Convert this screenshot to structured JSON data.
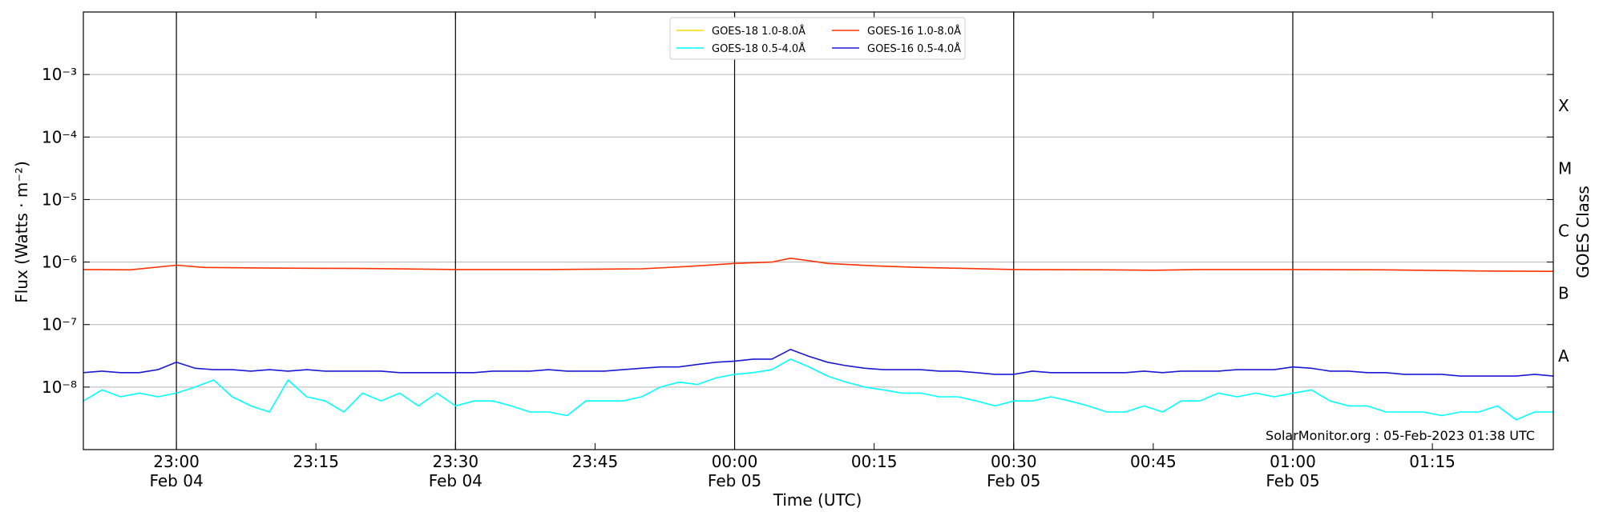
{
  "chart_data": {
    "type": "line",
    "title": "",
    "xlabel": "Time (UTC)",
    "ylabel": "Flux (Watts · m⁻²)",
    "y2label": "GOES Class",
    "yscale": "log",
    "ylim": [
      1e-09,
      0.01
    ],
    "xlim": [
      "22:50",
      "01:28"
    ],
    "grid": "horizontal at decades",
    "legend_position": "top-center",
    "y_ticks": [
      {
        "value": 1e-08,
        "label": "10⁻⁸"
      },
      {
        "value": 1e-07,
        "label": "10⁻⁷"
      },
      {
        "value": 1e-06,
        "label": "10⁻⁶"
      },
      {
        "value": 1e-05,
        "label": "10⁻⁵"
      },
      {
        "value": 0.0001,
        "label": "10⁻⁴"
      },
      {
        "value": 0.001,
        "label": "10⁻³"
      }
    ],
    "x_ticks": [
      {
        "time": "23:00",
        "label": "23:00",
        "date": "Feb 04",
        "major": true
      },
      {
        "time": "23:15",
        "label": "23:15",
        "date": "",
        "major": false
      },
      {
        "time": "23:30",
        "label": "23:30",
        "date": "Feb 04",
        "major": true
      },
      {
        "time": "23:45",
        "label": "23:45",
        "date": "",
        "major": false
      },
      {
        "time": "00:00",
        "label": "00:00",
        "date": "Feb 05",
        "major": true
      },
      {
        "time": "00:15",
        "label": "00:15",
        "date": "",
        "major": false
      },
      {
        "time": "00:30",
        "label": "00:30",
        "date": "Feb 05",
        "major": true
      },
      {
        "time": "00:45",
        "label": "00:45",
        "date": "",
        "major": false
      },
      {
        "time": "01:00",
        "label": "01:00",
        "date": "Feb 05",
        "major": true
      },
      {
        "time": "01:15",
        "label": "01:15",
        "date": "",
        "major": false
      }
    ],
    "goes_classes": [
      {
        "label": "A",
        "flux": 1e-08
      },
      {
        "label": "B",
        "flux": 1e-07
      },
      {
        "label": "C",
        "flux": 1e-06
      },
      {
        "label": "M",
        "flux": 1e-05
      },
      {
        "label": "X",
        "flux": 0.0001
      }
    ],
    "series": [
      {
        "name": "GOES-18 1.0-8.0Å",
        "color": "#ffd700",
        "points": []
      },
      {
        "name": "GOES-18 0.5-4.0Å",
        "color": "#00ffff",
        "points": [
          [
            "22:50",
            6e-09
          ],
          [
            "22:52",
            9e-09
          ],
          [
            "22:54",
            7e-09
          ],
          [
            "22:56",
            8e-09
          ],
          [
            "22:58",
            7e-09
          ],
          [
            "23:00",
            8e-09
          ],
          [
            "23:02",
            1e-08
          ],
          [
            "23:04",
            1.3e-08
          ],
          [
            "23:06",
            7e-09
          ],
          [
            "23:08",
            5e-09
          ],
          [
            "23:10",
            4e-09
          ],
          [
            "23:12",
            1.3e-08
          ],
          [
            "23:14",
            7e-09
          ],
          [
            "23:16",
            6e-09
          ],
          [
            "23:18",
            4e-09
          ],
          [
            "23:20",
            8e-09
          ],
          [
            "23:22",
            6e-09
          ],
          [
            "23:24",
            8e-09
          ],
          [
            "23:26",
            5e-09
          ],
          [
            "23:28",
            8e-09
          ],
          [
            "23:30",
            5e-09
          ],
          [
            "23:32",
            6e-09
          ],
          [
            "23:34",
            6e-09
          ],
          [
            "23:36",
            5e-09
          ],
          [
            "23:38",
            4e-09
          ],
          [
            "23:40",
            4e-09
          ],
          [
            "23:42",
            3.5e-09
          ],
          [
            "23:44",
            6e-09
          ],
          [
            "23:46",
            6e-09
          ],
          [
            "23:48",
            6e-09
          ],
          [
            "23:50",
            7e-09
          ],
          [
            "23:52",
            1e-08
          ],
          [
            "23:54",
            1.2e-08
          ],
          [
            "23:56",
            1.1e-08
          ],
          [
            "23:58",
            1.4e-08
          ],
          [
            "00:00",
            1.6e-08
          ],
          [
            "00:02",
            1.7e-08
          ],
          [
            "00:04",
            1.9e-08
          ],
          [
            "00:06",
            2.8e-08
          ],
          [
            "00:08",
            2.1e-08
          ],
          [
            "00:10",
            1.5e-08
          ],
          [
            "00:12",
            1.2e-08
          ],
          [
            "00:14",
            1e-08
          ],
          [
            "00:16",
            9e-09
          ],
          [
            "00:18",
            8e-09
          ],
          [
            "00:20",
            8e-09
          ],
          [
            "00:22",
            7e-09
          ],
          [
            "00:24",
            7e-09
          ],
          [
            "00:26",
            6e-09
          ],
          [
            "00:28",
            5e-09
          ],
          [
            "00:30",
            6e-09
          ],
          [
            "00:32",
            6e-09
          ],
          [
            "00:34",
            7e-09
          ],
          [
            "00:36",
            6e-09
          ],
          [
            "00:38",
            5e-09
          ],
          [
            "00:40",
            4e-09
          ],
          [
            "00:42",
            4e-09
          ],
          [
            "00:44",
            5e-09
          ],
          [
            "00:46",
            4e-09
          ],
          [
            "00:48",
            6e-09
          ],
          [
            "00:50",
            6e-09
          ],
          [
            "00:52",
            8e-09
          ],
          [
            "00:54",
            7e-09
          ],
          [
            "00:56",
            8e-09
          ],
          [
            "00:58",
            7e-09
          ],
          [
            "01:00",
            8e-09
          ],
          [
            "01:02",
            9e-09
          ],
          [
            "01:04",
            6e-09
          ],
          [
            "01:06",
            5e-09
          ],
          [
            "01:08",
            5e-09
          ],
          [
            "01:10",
            4e-09
          ],
          [
            "01:12",
            4e-09
          ],
          [
            "01:14",
            4e-09
          ],
          [
            "01:16",
            3.5e-09
          ],
          [
            "01:18",
            4e-09
          ],
          [
            "01:20",
            4e-09
          ],
          [
            "01:22",
            5e-09
          ],
          [
            "01:24",
            3e-09
          ],
          [
            "01:26",
            4e-09
          ],
          [
            "01:28",
            4e-09
          ]
        ]
      },
      {
        "name": "GOES-16 1.0-8.0Å",
        "color": "#ff3300",
        "points": [
          [
            "22:50",
            7.6e-07
          ],
          [
            "22:55",
            7.5e-07
          ],
          [
            "23:00",
            8.9e-07
          ],
          [
            "23:03",
            8.2e-07
          ],
          [
            "23:10",
            8e-07
          ],
          [
            "23:20",
            7.9e-07
          ],
          [
            "23:30",
            7.6e-07
          ],
          [
            "23:40",
            7.6e-07
          ],
          [
            "23:50",
            7.8e-07
          ],
          [
            "23:55",
            8.5e-07
          ],
          [
            "00:00",
            9.5e-07
          ],
          [
            "00:04",
            1e-06
          ],
          [
            "00:06",
            1.15e-06
          ],
          [
            "00:08",
            1.05e-06
          ],
          [
            "00:10",
            9.5e-07
          ],
          [
            "00:15",
            8.7e-07
          ],
          [
            "00:20",
            8.2e-07
          ],
          [
            "00:25",
            7.9e-07
          ],
          [
            "00:30",
            7.6e-07
          ],
          [
            "00:40",
            7.5e-07
          ],
          [
            "00:45",
            7.4e-07
          ],
          [
            "00:50",
            7.6e-07
          ],
          [
            "01:00",
            7.6e-07
          ],
          [
            "01:10",
            7.5e-07
          ],
          [
            "01:20",
            7.2e-07
          ],
          [
            "01:28",
            7.1e-07
          ]
        ]
      },
      {
        "name": "GOES-16 0.5-4.0Å",
        "color": "#1a1ad4",
        "points": [
          [
            "22:50",
            1.7e-08
          ],
          [
            "22:52",
            1.8e-08
          ],
          [
            "22:54",
            1.7e-08
          ],
          [
            "22:56",
            1.7e-08
          ],
          [
            "22:58",
            1.9e-08
          ],
          [
            "23:00",
            2.5e-08
          ],
          [
            "23:02",
            2e-08
          ],
          [
            "23:04",
            1.9e-08
          ],
          [
            "23:06",
            1.9e-08
          ],
          [
            "23:08",
            1.8e-08
          ],
          [
            "23:10",
            1.9e-08
          ],
          [
            "23:12",
            1.8e-08
          ],
          [
            "23:14",
            1.9e-08
          ],
          [
            "23:16",
            1.8e-08
          ],
          [
            "23:18",
            1.8e-08
          ],
          [
            "23:20",
            1.8e-08
          ],
          [
            "23:22",
            1.8e-08
          ],
          [
            "23:24",
            1.7e-08
          ],
          [
            "23:26",
            1.7e-08
          ],
          [
            "23:28",
            1.7e-08
          ],
          [
            "23:30",
            1.7e-08
          ],
          [
            "23:32",
            1.7e-08
          ],
          [
            "23:34",
            1.8e-08
          ],
          [
            "23:36",
            1.8e-08
          ],
          [
            "23:38",
            1.8e-08
          ],
          [
            "23:40",
            1.9e-08
          ],
          [
            "23:42",
            1.8e-08
          ],
          [
            "23:44",
            1.8e-08
          ],
          [
            "23:46",
            1.8e-08
          ],
          [
            "23:48",
            1.9e-08
          ],
          [
            "23:50",
            2e-08
          ],
          [
            "23:52",
            2.1e-08
          ],
          [
            "23:54",
            2.1e-08
          ],
          [
            "23:56",
            2.3e-08
          ],
          [
            "23:58",
            2.5e-08
          ],
          [
            "00:00",
            2.6e-08
          ],
          [
            "00:02",
            2.8e-08
          ],
          [
            "00:04",
            2.8e-08
          ],
          [
            "00:06",
            4e-08
          ],
          [
            "00:08",
            3.1e-08
          ],
          [
            "00:10",
            2.5e-08
          ],
          [
            "00:12",
            2.2e-08
          ],
          [
            "00:14",
            2e-08
          ],
          [
            "00:16",
            1.9e-08
          ],
          [
            "00:18",
            1.9e-08
          ],
          [
            "00:20",
            1.9e-08
          ],
          [
            "00:22",
            1.8e-08
          ],
          [
            "00:24",
            1.8e-08
          ],
          [
            "00:26",
            1.7e-08
          ],
          [
            "00:28",
            1.6e-08
          ],
          [
            "00:30",
            1.6e-08
          ],
          [
            "00:32",
            1.8e-08
          ],
          [
            "00:34",
            1.7e-08
          ],
          [
            "00:36",
            1.7e-08
          ],
          [
            "00:38",
            1.7e-08
          ],
          [
            "00:40",
            1.7e-08
          ],
          [
            "00:42",
            1.7e-08
          ],
          [
            "00:44",
            1.8e-08
          ],
          [
            "00:46",
            1.7e-08
          ],
          [
            "00:48",
            1.8e-08
          ],
          [
            "00:50",
            1.8e-08
          ],
          [
            "00:52",
            1.8e-08
          ],
          [
            "00:54",
            1.9e-08
          ],
          [
            "00:56",
            1.9e-08
          ],
          [
            "00:58",
            1.9e-08
          ],
          [
            "01:00",
            2.1e-08
          ],
          [
            "01:02",
            2e-08
          ],
          [
            "01:04",
            1.8e-08
          ],
          [
            "01:06",
            1.8e-08
          ],
          [
            "01:08",
            1.7e-08
          ],
          [
            "01:10",
            1.7e-08
          ],
          [
            "01:12",
            1.6e-08
          ],
          [
            "01:14",
            1.6e-08
          ],
          [
            "01:16",
            1.6e-08
          ],
          [
            "01:18",
            1.5e-08
          ],
          [
            "01:20",
            1.5e-08
          ],
          [
            "01:22",
            1.5e-08
          ],
          [
            "01:24",
            1.5e-08
          ],
          [
            "01:26",
            1.6e-08
          ],
          [
            "01:28",
            1.5e-08
          ]
        ]
      }
    ],
    "annotation": "SolarMonitor.org : 05-Feb-2023 01:38 UTC"
  }
}
